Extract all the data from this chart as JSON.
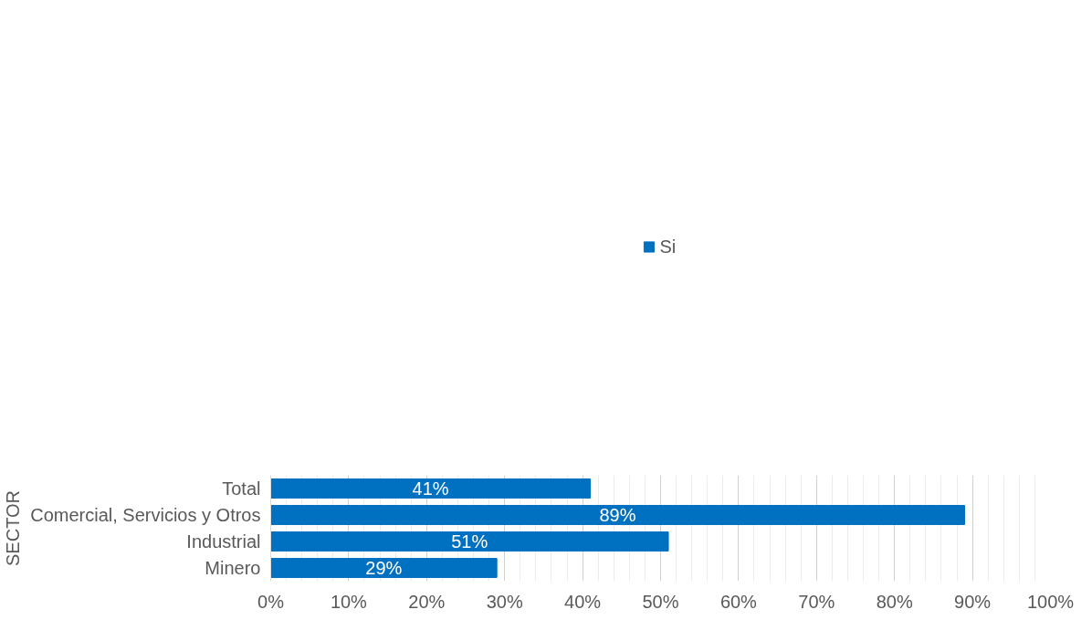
{
  "chart_data": {
    "type": "bar",
    "orientation": "horizontal",
    "ylabel": "SECTOR",
    "categories": [
      "Total",
      "Comercial, Servicios y Otros",
      "Industrial",
      "Minero"
    ],
    "series": [
      {
        "name": "Si",
        "color": "#0070c0",
        "values": [
          41,
          89,
          51,
          29
        ],
        "value_labels": [
          "41%",
          "89%",
          "51%",
          "29%"
        ]
      }
    ],
    "xlim": [
      0,
      100
    ],
    "xticks": [
      {
        "value": 0,
        "label": "0%"
      },
      {
        "value": 10,
        "label": "10%"
      },
      {
        "value": 20,
        "label": "20%"
      },
      {
        "value": 30,
        "label": "30%"
      },
      {
        "value": 40,
        "label": "40%"
      },
      {
        "value": 50,
        "label": "50%"
      },
      {
        "value": 60,
        "label": "60%"
      },
      {
        "value": 70,
        "label": "70%"
      },
      {
        "value": 80,
        "label": "80%"
      },
      {
        "value": 90,
        "label": "90%"
      },
      {
        "value": 100,
        "label": "100%"
      }
    ],
    "grid": "x",
    "legend": "top"
  }
}
